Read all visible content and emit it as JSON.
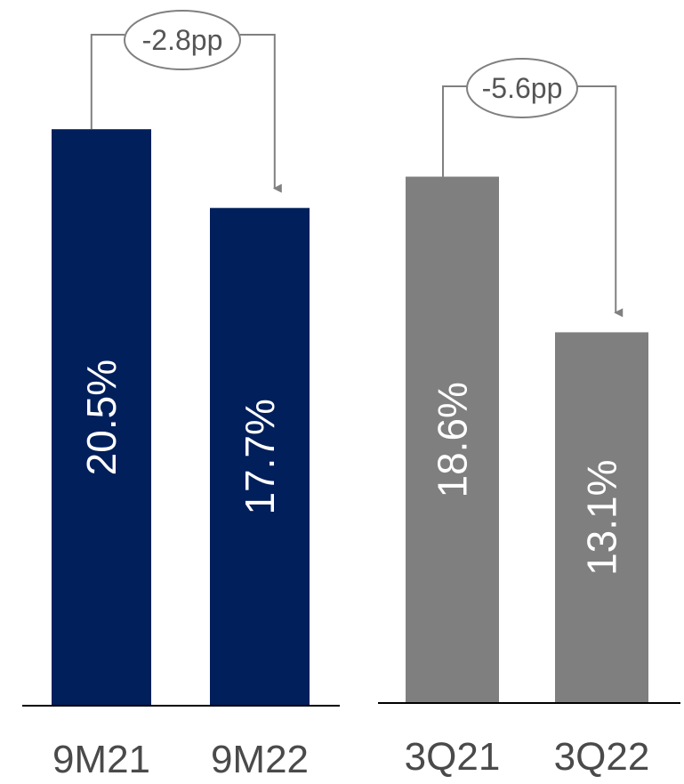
{
  "chart_data": [
    {
      "type": "bar",
      "categories": [
        "9M21",
        "9M22"
      ],
      "values": [
        20.5,
        17.7
      ],
      "value_labels": [
        "20.5%",
        "17.7%"
      ],
      "change_label": "-2.8pp",
      "color": "#001f5b"
    },
    {
      "type": "bar",
      "categories": [
        "3Q21",
        "3Q22"
      ],
      "values": [
        18.6,
        13.1
      ],
      "value_labels": [
        "18.6%",
        "13.1%"
      ],
      "change_label": "-5.6pp",
      "color": "#7f7f7f"
    }
  ],
  "colors": {
    "axis": "#000000",
    "connector": "#808080",
    "category_text": "#4a4a4a",
    "bar_text": "#ffffff"
  }
}
